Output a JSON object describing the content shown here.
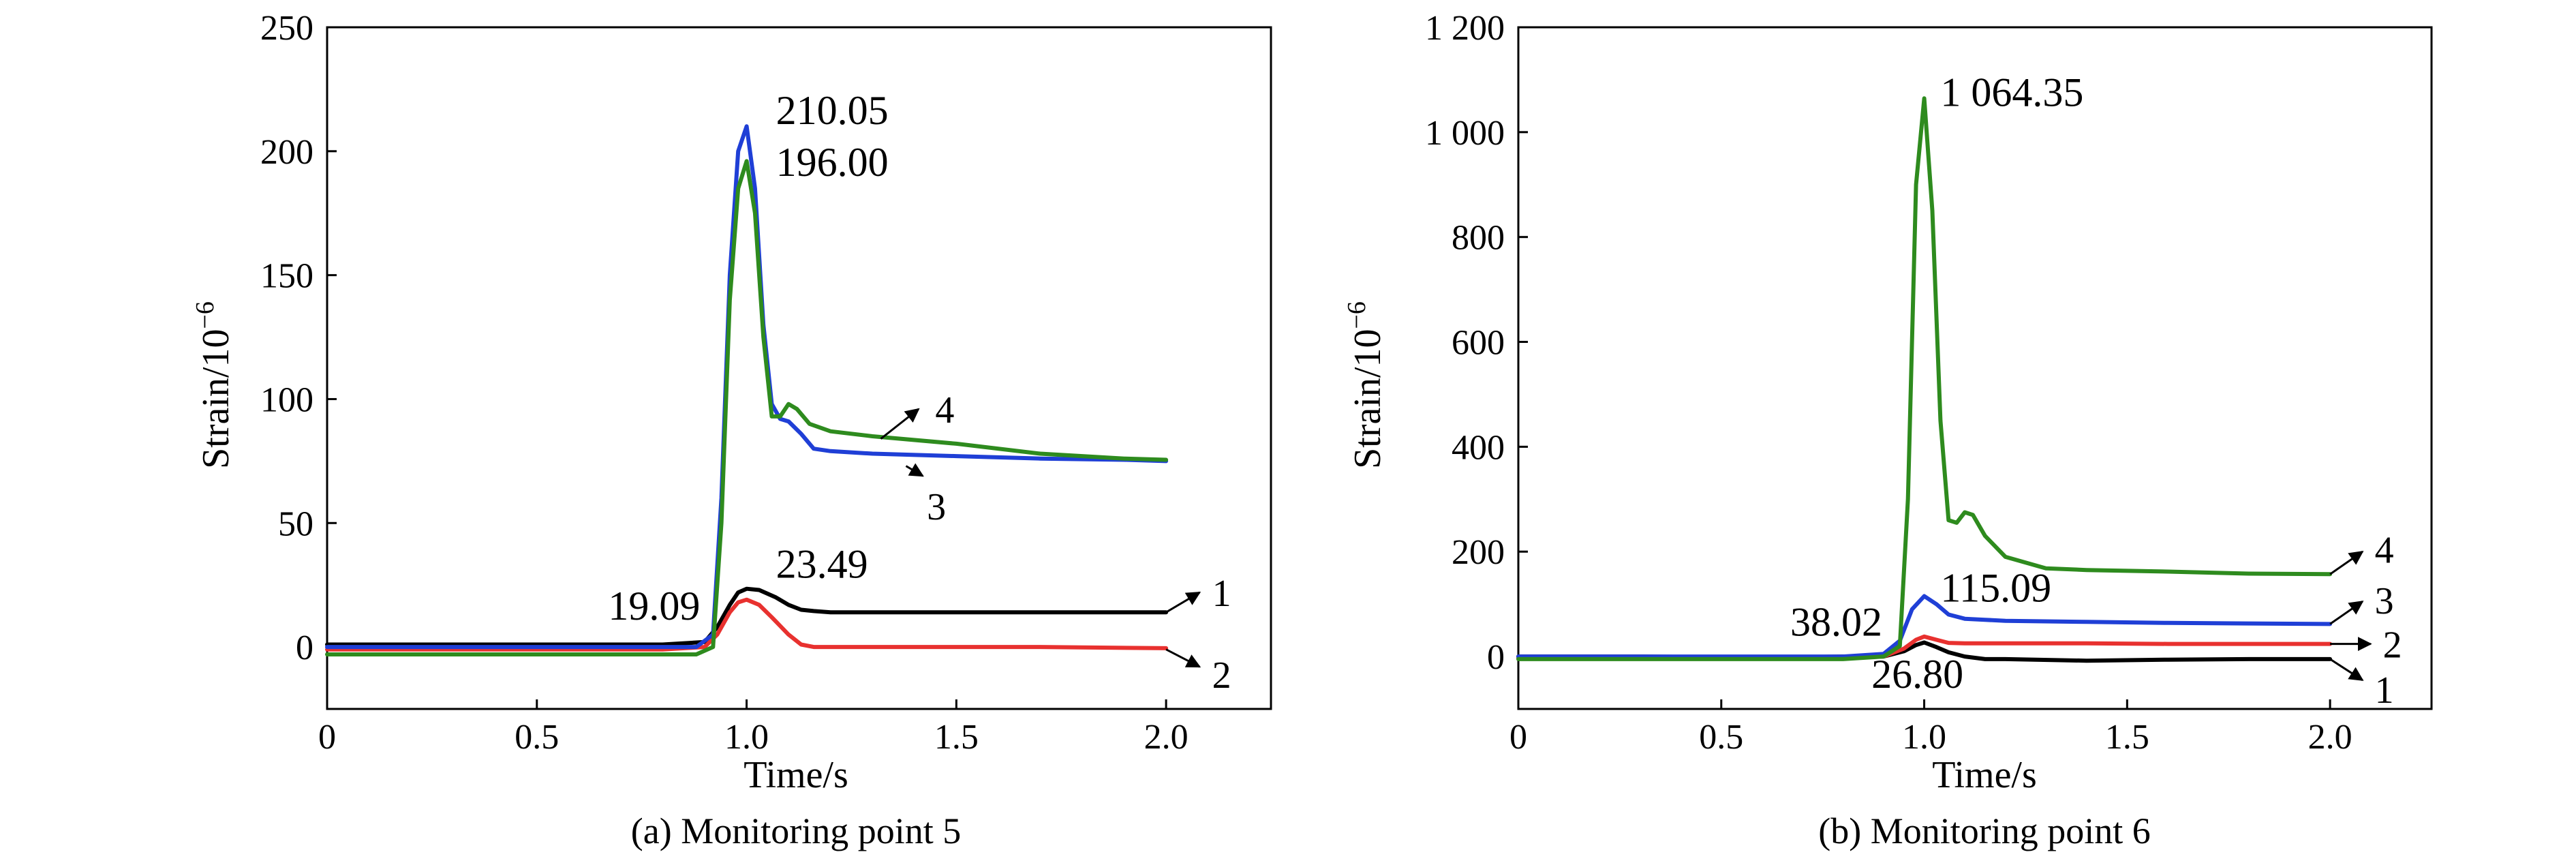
{
  "chart_data": [
    {
      "type": "line",
      "caption": "(a) Monitoring point 5",
      "xlabel": "Time/s",
      "ylabel": "Strain/10",
      "ylabel_sup": "−6",
      "xlim": [
        0,
        2.25
      ],
      "ylim": [
        -25,
        250
      ],
      "xticks": [
        0,
        0.5,
        1.0,
        1.5,
        2.0
      ],
      "xtick_labels": [
        "0",
        "0.5",
        "1.0",
        "1.5",
        "2.0"
      ],
      "yticks": [
        0,
        50,
        100,
        150,
        200,
        250
      ],
      "ytick_labels": [
        "0",
        "50",
        "100",
        "150",
        "200",
        "250"
      ],
      "series": [
        {
          "name": "1",
          "color": "#000000",
          "x": [
            0,
            0.2,
            0.4,
            0.6,
            0.8,
            0.9,
            0.93,
            0.96,
            0.98,
            1.0,
            1.03,
            1.07,
            1.1,
            1.13,
            1.16,
            1.2,
            1.3,
            1.5,
            1.7,
            2.0
          ],
          "y": [
            1,
            1,
            1,
            1,
            1,
            2,
            8,
            17,
            22,
            23.49,
            23,
            20,
            17,
            15,
            14.5,
            14,
            14,
            14,
            14,
            14
          ]
        },
        {
          "name": "2",
          "color": "#e8312f",
          "x": [
            0,
            0.2,
            0.4,
            0.6,
            0.8,
            0.9,
            0.93,
            0.96,
            0.98,
            1.0,
            1.03,
            1.06,
            1.1,
            1.13,
            1.16,
            1.2,
            1.3,
            1.5,
            1.7,
            2.0
          ],
          "y": [
            -1,
            -1,
            -1,
            -1,
            -1,
            0,
            5,
            14,
            18,
            19.09,
            17,
            12,
            5,
            1,
            0,
            0,
            0,
            0,
            0,
            -0.5
          ]
        },
        {
          "name": "3",
          "color": "#1f3fd6",
          "x": [
            0,
            0.2,
            0.4,
            0.6,
            0.8,
            0.88,
            0.92,
            0.94,
            0.96,
            0.98,
            1.0,
            1.02,
            1.04,
            1.06,
            1.08,
            1.1,
            1.13,
            1.16,
            1.2,
            1.3,
            1.5,
            1.7,
            1.9,
            2.0
          ],
          "y": [
            0,
            0,
            0,
            0,
            0,
            0,
            5,
            60,
            150,
            200,
            210.05,
            185,
            130,
            98,
            92,
            91,
            86,
            80,
            79,
            78,
            77,
            76,
            75.5,
            75
          ]
        },
        {
          "name": "4",
          "color": "#2e8b1e",
          "x": [
            0,
            0.2,
            0.4,
            0.6,
            0.8,
            0.88,
            0.92,
            0.94,
            0.96,
            0.98,
            1.0,
            1.02,
            1.04,
            1.06,
            1.08,
            1.1,
            1.12,
            1.15,
            1.2,
            1.3,
            1.5,
            1.7,
            1.9,
            2.0
          ],
          "y": [
            -3,
            -3,
            -3,
            -3,
            -3,
            -3,
            0,
            50,
            140,
            185,
            196.0,
            175,
            125,
            93,
            93,
            98,
            96,
            90,
            87,
            85,
            82,
            78,
            76,
            75.5
          ]
        }
      ],
      "annotations": [
        {
          "text": "210.05",
          "x": 1.07,
          "y": 211
        },
        {
          "text": "196.00",
          "x": 1.07,
          "y": 190
        },
        {
          "text": "23.49",
          "x": 1.07,
          "y": 28
        },
        {
          "text": "19.09",
          "x": 0.67,
          "y": 11
        }
      ],
      "markers": [
        {
          "label": "4",
          "x1": 1.32,
          "y1": 84,
          "x2": 1.41,
          "y2": 96,
          "lx": 1.44,
          "ly": 96
        },
        {
          "label": "3",
          "x1": 1.38,
          "y1": 73,
          "x2": 1.42,
          "y2": 69,
          "lx": 1.42,
          "ly": 57
        },
        {
          "label": "1",
          "x1": 2.0,
          "y1": 14,
          "x2": 2.08,
          "y2": 22,
          "lx": 2.1,
          "ly": 22
        },
        {
          "label": "2",
          "x1": 2.0,
          "y1": -1,
          "x2": 2.08,
          "y2": -8,
          "lx": 2.1,
          "ly": -11
        }
      ]
    },
    {
      "type": "line",
      "caption": "(b) Monitoring point 6",
      "xlabel": "Time/s",
      "ylabel": "Strain/10",
      "ylabel_sup": "−6",
      "xlim": [
        0,
        2.25
      ],
      "ylim": [
        -100,
        1200
      ],
      "xticks": [
        0,
        0.5,
        1.0,
        1.5,
        2.0
      ],
      "xtick_labels": [
        "0",
        "0.5",
        "1.0",
        "1.5",
        "2.0"
      ],
      "yticks": [
        0,
        200,
        400,
        600,
        800,
        1000,
        1200
      ],
      "ytick_labels": [
        "0",
        "200",
        "400",
        "600",
        "800",
        "1 000",
        "1 200"
      ],
      "series": [
        {
          "name": "1",
          "color": "#000000",
          "x": [
            0,
            0.3,
            0.6,
            0.8,
            0.9,
            0.95,
            0.98,
            1.0,
            1.03,
            1.06,
            1.1,
            1.15,
            1.2,
            1.4,
            1.6,
            1.8,
            2.0
          ],
          "y": [
            0,
            0,
            -2,
            0,
            0,
            10,
            22,
            26.8,
            18,
            8,
            0,
            -5,
            -5,
            -8,
            -6,
            -5,
            -5
          ]
        },
        {
          "name": "2",
          "color": "#e8312f",
          "x": [
            0,
            0.3,
            0.6,
            0.8,
            0.9,
            0.95,
            0.98,
            1.0,
            1.03,
            1.06,
            1.1,
            1.2,
            1.4,
            1.6,
            1.8,
            2.0
          ],
          "y": [
            -3,
            -3,
            -3,
            -2,
            0,
            15,
            32,
            38.02,
            32,
            26,
            25,
            25,
            25,
            24,
            24,
            24
          ]
        },
        {
          "name": "3",
          "color": "#1f3fd6",
          "x": [
            0,
            0.3,
            0.6,
            0.8,
            0.9,
            0.94,
            0.97,
            1.0,
            1.03,
            1.06,
            1.1,
            1.15,
            1.2,
            1.4,
            1.6,
            1.8,
            2.0
          ],
          "y": [
            0,
            0,
            0,
            0,
            5,
            30,
            90,
            115.09,
            100,
            80,
            72,
            70,
            68,
            66,
            64,
            63,
            62
          ]
        },
        {
          "name": "4",
          "color": "#2e8b1e",
          "x": [
            0,
            0.3,
            0.6,
            0.8,
            0.9,
            0.94,
            0.96,
            0.98,
            1.0,
            1.02,
            1.04,
            1.06,
            1.08,
            1.1,
            1.12,
            1.15,
            1.2,
            1.3,
            1.4,
            1.6,
            1.8,
            2.0
          ],
          "y": [
            -5,
            -5,
            -5,
            -5,
            0,
            20,
            300,
            900,
            1064.35,
            850,
            450,
            260,
            255,
            275,
            270,
            230,
            190,
            168,
            165,
            162,
            158,
            157
          ]
        }
      ],
      "annotations": [
        {
          "text": "1 064.35",
          "x": 1.04,
          "y": 1050
        },
        {
          "text": "115.09",
          "x": 1.04,
          "y": 105
        },
        {
          "text": "38.02",
          "x": 0.67,
          "y": 40
        },
        {
          "text": "26.80",
          "x": 0.87,
          "y": -60
        }
      ],
      "markers": [
        {
          "label": "4",
          "x1": 2.0,
          "y1": 157,
          "x2": 2.08,
          "y2": 200,
          "lx": 2.1,
          "ly": 205
        },
        {
          "label": "3",
          "x1": 2.0,
          "y1": 62,
          "x2": 2.08,
          "y2": 105,
          "lx": 2.1,
          "ly": 108
        },
        {
          "label": "2",
          "x1": 2.0,
          "y1": 24,
          "x2": 2.1,
          "y2": 24,
          "lx": 2.12,
          "ly": 24
        },
        {
          "label": "1",
          "x1": 2.0,
          "y1": -5,
          "x2": 2.08,
          "y2": -45,
          "lx": 2.1,
          "ly": -62
        }
      ]
    }
  ]
}
